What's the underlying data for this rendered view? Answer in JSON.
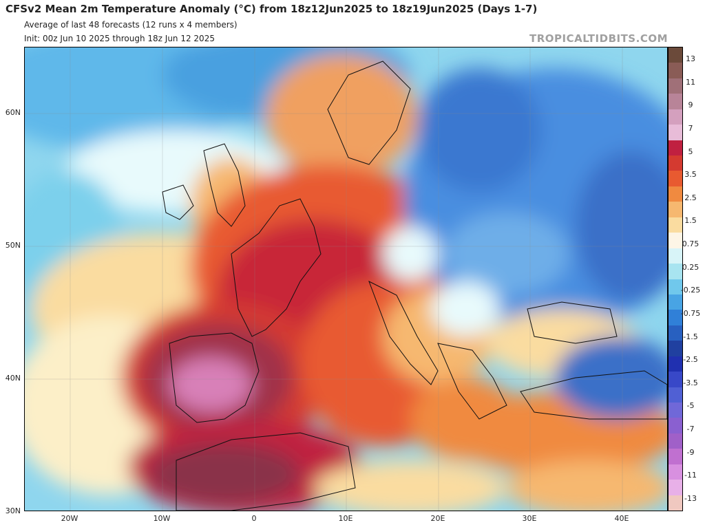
{
  "header": {
    "title": "CFSv2 Mean 2m Temperature Anomaly (°C) from 18z12Jun2025 to 18z19Jun2025 (Days 1-7)",
    "subtitle1": "Average of last 48 forecasts (12 runs x 4 members)",
    "subtitle2": "Init: 00z Jun 10 2025 through 18z Jun 12 2025",
    "brand": "TROPICALTIDBITS.COM"
  },
  "map": {
    "lat_labels": [
      "60N",
      "50N",
      "40N",
      "30N"
    ],
    "lon_labels": [
      "20W",
      "10W",
      "0",
      "10E",
      "20E",
      "30E",
      "40E"
    ],
    "region": "Europe / North Africa"
  },
  "colorbar": {
    "labels": [
      "13",
      "11",
      "9",
      "7",
      "5",
      "3.5",
      "2.5",
      "1.5",
      "0.75",
      "0.25",
      "-0.25",
      "-0.75",
      "-1.5",
      "-2.5",
      "-3.5",
      "-5",
      "-7",
      "-9",
      "-11",
      "-13"
    ],
    "colors": [
      "#6b4a3a",
      "#8a5c56",
      "#a07078",
      "#b88498",
      "#d4a0be",
      "#e8bcd8",
      "#c02040",
      "#d43a30",
      "#e85a30",
      "#f08a40",
      "#f6b870",
      "#fadca0",
      "#fdf5e6",
      "#d8f4f8",
      "#a8e4f0",
      "#70c8ec",
      "#48a4e4",
      "#3080d8",
      "#2860c0",
      "#2040a0",
      "#2030b0",
      "#3848c8",
      "#5060d4",
      "#7068d8",
      "#8a60d0",
      "#a060c8",
      "#c070d0",
      "#d890e0",
      "#e8b0e8",
      "#f0c8c0"
    ]
  }
}
